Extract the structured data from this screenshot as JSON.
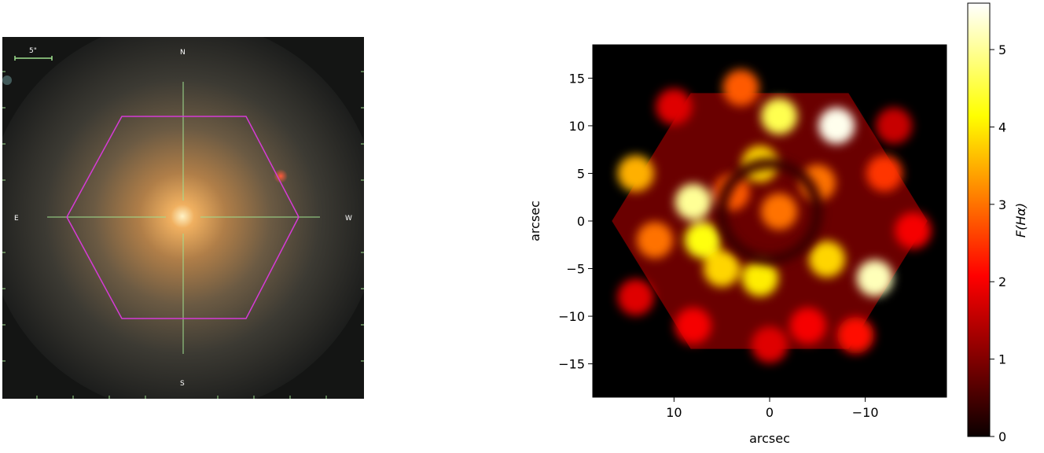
{
  "left_image": {
    "compass": {
      "north": "N",
      "south": "S",
      "east": "E",
      "west": "W"
    },
    "scale_bar_label": "5\"",
    "colors": {
      "hexagon": "#d63bd6",
      "crosshair": "#9fe08f",
      "scale_bar": "#9fe08f"
    }
  },
  "chart_data": {
    "type": "heatmap",
    "title": "",
    "xlabel": "arcsec",
    "ylabel": "arcsec",
    "xlim": [
      18.5,
      -18.5
    ],
    "ylim": [
      -18.5,
      18.5
    ],
    "x_ticks": [
      10,
      0,
      -10
    ],
    "x_tick_labels": [
      "10",
      "0",
      "−10"
    ],
    "y_ticks": [
      15,
      10,
      5,
      0,
      -5,
      -10,
      -15
    ],
    "y_tick_labels": [
      "15",
      "10",
      "5",
      "0",
      "−5",
      "−10",
      "−15"
    ],
    "colormap": "hot",
    "colorbar": {
      "label": "F(Hα)",
      "range": [
        0,
        5.6
      ],
      "ticks": [
        0,
        1,
        2,
        3,
        4,
        5
      ],
      "tick_labels": [
        "0",
        "1",
        "2",
        "3",
        "4",
        "5"
      ]
    },
    "hexagon_radius_arcsec": 16.5,
    "features": [
      {
        "x": -1,
        "y": 1,
        "value": 3.0
      },
      {
        "x": -1,
        "y": 11,
        "value": 4.6
      },
      {
        "x": -7,
        "y": 10,
        "value": 5.5
      },
      {
        "x": 8,
        "y": 2,
        "value": 5.0
      },
      {
        "x": 7,
        "y": -2,
        "value": 4.2
      },
      {
        "x": 5,
        "y": -5,
        "value": 3.8
      },
      {
        "x": 1,
        "y": -6,
        "value": 4.0
      },
      {
        "x": -6,
        "y": -4,
        "value": 3.8
      },
      {
        "x": -11,
        "y": -6,
        "value": 5.2
      },
      {
        "x": 14,
        "y": 5,
        "value": 3.5
      },
      {
        "x": 12,
        "y": -2,
        "value": 3.0
      },
      {
        "x": -5,
        "y": 4,
        "value": 3.0
      },
      {
        "x": 1,
        "y": 6,
        "value": 3.8
      },
      {
        "x": 4,
        "y": 3,
        "value": 2.8
      },
      {
        "x": -12,
        "y": 5,
        "value": 2.5
      },
      {
        "x": -15,
        "y": -1,
        "value": 2.0
      },
      {
        "x": 3,
        "y": 14,
        "value": 2.8
      },
      {
        "x": -9,
        "y": -12,
        "value": 2.2
      },
      {
        "x": 8,
        "y": -11,
        "value": 2.0
      },
      {
        "x": 0,
        "y": -13,
        "value": 1.8
      },
      {
        "x": 10,
        "y": 12,
        "value": 1.8
      },
      {
        "x": -4,
        "y": -11,
        "value": 2.0
      },
      {
        "x": 14,
        "y": -8,
        "value": 1.8
      },
      {
        "x": -13,
        "y": 10,
        "value": 1.6
      }
    ],
    "central_ring": {
      "x": 0,
      "y": 1,
      "radius_arcsec": 5,
      "value": 0.6
    }
  }
}
